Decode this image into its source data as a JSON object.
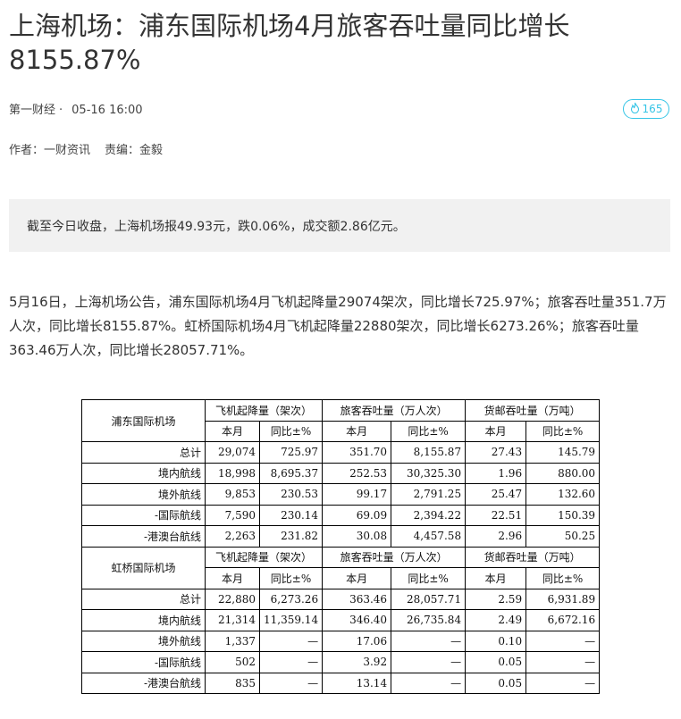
{
  "article": {
    "title": "上海机场：浦东国际机场4月旅客吞吐量同比增长8155.87%",
    "source": "第一财经",
    "dot": "·",
    "time": "05-16 16:00",
    "hot_count": "165",
    "author": "作者：一财资讯",
    "editor": "责编：金毅",
    "summary": "截至今日收盘，上海机场报49.93元，跌0.06%，成交额2.86亿元。",
    "body": "5月16日，上海机场公告，浦东国际机场4月飞机起降量29074架次，同比增长725.97%；旅客吞吐量351.7万人次，同比增长8155.87%。虹桥国际机场4月飞机起降量22880架次，同比增长6273.26%；旅客吞吐量363.46万人次，同比增长28057.71%。"
  },
  "colors": {
    "accent": "#36c5e6",
    "summary_bg": "#f1f1f1"
  },
  "table": {
    "groups": [
      "飞机起降量（架次）",
      "旅客吞吐量（万人次）",
      "货邮吞吐量（万吨）"
    ],
    "subheaders": [
      "本月",
      "同比±%",
      "本月",
      "同比±%",
      "本月",
      "同比±%"
    ],
    "sections": [
      {
        "airport": "浦东国际机场",
        "rows": [
          [
            "总计",
            "29,074",
            "725.97",
            "351.70",
            "8,155.87",
            "27.43",
            "145.79"
          ],
          [
            "境内航线",
            "18,998",
            "8,695.37",
            "252.53",
            "30,325.30",
            "1.96",
            "880.00"
          ],
          [
            "境外航线",
            "9,853",
            "230.53",
            "99.17",
            "2,791.25",
            "25.47",
            "132.60"
          ],
          [
            "-国际航线",
            "7,590",
            "230.14",
            "69.09",
            "2,394.22",
            "22.51",
            "150.39"
          ],
          [
            "-港澳台航线",
            "2,263",
            "231.82",
            "30.08",
            "4,457.58",
            "2.96",
            "50.25"
          ]
        ]
      },
      {
        "airport": "虹桥国际机场",
        "rows": [
          [
            "总计",
            "22,880",
            "6,273.26",
            "363.46",
            "28,057.71",
            "2.59",
            "6,931.89"
          ],
          [
            "境内航线",
            "21,314",
            "11,359.14",
            "346.40",
            "26,735.84",
            "2.49",
            "6,672.16"
          ],
          [
            "境外航线",
            "1,337",
            "—",
            "17.06",
            "—",
            "0.10",
            "—"
          ],
          [
            "-国际航线",
            "502",
            "—",
            "3.92",
            "—",
            "0.05",
            "—"
          ],
          [
            "-港澳台航线",
            "835",
            "—",
            "13.14",
            "—",
            "0.05",
            "—"
          ]
        ]
      }
    ]
  }
}
